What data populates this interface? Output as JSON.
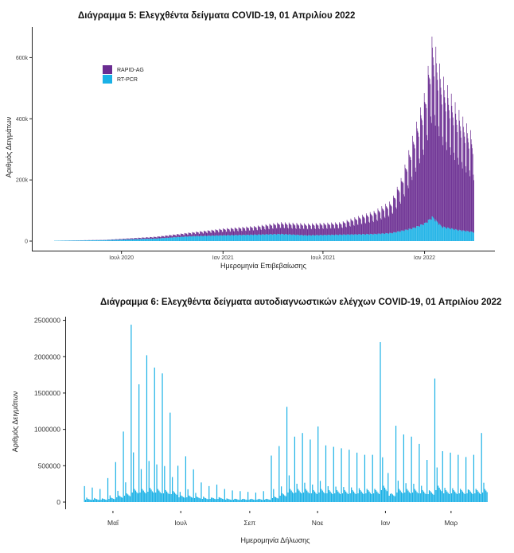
{
  "chart_data": [
    {
      "type": "bar",
      "title": "Διάγραμμα 5: Ελεγχθέντα δείγματα COVID-19, 01 Απριλίου 2022",
      "xlabel": "Ημερομηνία Επιβεβαίωσης",
      "ylabel": "Αριθμός Δειγμάτων",
      "ylim": [
        0,
        700000
      ],
      "y_ticks": [
        0,
        200000,
        400000,
        600000
      ],
      "y_tick_labels": [
        "0",
        "200k",
        "400k",
        "600k"
      ],
      "x_ticks": [
        "2020-07-01",
        "2021-01-01",
        "2021-07-01",
        "2022-01-01"
      ],
      "x_tick_labels": [
        "Ιουλ 2020",
        "Ιαν 2021",
        "Ιουλ 2021",
        "Ιαν 2022"
      ],
      "xlim": [
        "2020-03-01",
        "2022-04-01"
      ],
      "stacked": true,
      "legend_position": "top-left",
      "series": [
        {
          "name": "RAPID-AG",
          "color": "#6a2c91",
          "x": [
            "2020-03-01",
            "2020-06-01",
            "2020-09-01",
            "2020-11-01",
            "2021-01-01",
            "2021-03-01",
            "2021-04-15",
            "2021-06-01",
            "2021-08-01",
            "2021-10-01",
            "2021-11-01",
            "2021-11-20",
            "2021-12-10",
            "2022-01-01",
            "2022-01-15",
            "2022-02-01",
            "2022-03-01",
            "2022-04-01"
          ],
          "values": [
            0,
            1000,
            6000,
            12000,
            22000,
            28000,
            38000,
            38000,
            40000,
            75000,
            105000,
            175000,
            300000,
            430000,
            600000,
            500000,
            400000,
            310000
          ]
        },
        {
          "name": "RT-PCR",
          "color": "#1ab1e6",
          "x": [
            "2020-03-01",
            "2020-06-01",
            "2020-09-01",
            "2020-11-01",
            "2021-01-01",
            "2021-03-01",
            "2021-04-15",
            "2021-06-01",
            "2021-08-01",
            "2021-10-01",
            "2021-11-01",
            "2021-11-20",
            "2021-12-10",
            "2022-01-01",
            "2022-01-15",
            "2022-02-01",
            "2022-03-01",
            "2022-04-01"
          ],
          "values": [
            1000,
            3000,
            8000,
            15000,
            18000,
            20000,
            22000,
            18000,
            20000,
            22000,
            25000,
            32000,
            40000,
            55000,
            75000,
            45000,
            35000,
            28000
          ]
        }
      ]
    },
    {
      "type": "bar",
      "title": "Διάγραμμα 6: Ελεγχθέντα δείγματα αυτοδιαγνωστικών ελέγχων COVID-19, 01 Απριλίου 2022",
      "xlabel": "Ημερομηνία Δήλωσης",
      "ylabel": "Αριθμός Δειγμάτων",
      "ylim": [
        0,
        2550000
      ],
      "y_ticks": [
        0,
        500000,
        1000000,
        1500000,
        2000000,
        2500000
      ],
      "y_tick_labels": [
        "0",
        "500000",
        "1000000",
        "1500000",
        "2000000",
        "2500000"
      ],
      "x_ticks": [
        "2021-05-01",
        "2021-07-01",
        "2021-09-01",
        "2021-11-01",
        "2022-01-01",
        "2022-03-01"
      ],
      "x_tick_labels": [
        "Μαΐ",
        "Ιουλ",
        "Σεπ",
        "Νοε",
        "Ιαν",
        "Μαρ"
      ],
      "xlim": [
        "2021-04-01",
        "2022-04-03"
      ],
      "legend_position": "none",
      "series": [
        {
          "color": "#1ab1e6",
          "weekly_peak_dates": [
            "2021-04-05",
            "2021-04-12",
            "2021-04-19",
            "2021-04-26",
            "2021-05-03",
            "2021-05-10",
            "2021-05-17",
            "2021-05-24",
            "2021-05-31",
            "2021-06-07",
            "2021-06-14",
            "2021-06-21",
            "2021-06-28",
            "2021-07-05",
            "2021-07-12",
            "2021-07-19",
            "2021-07-26",
            "2021-08-02",
            "2021-08-09",
            "2021-08-16",
            "2021-08-23",
            "2021-08-30",
            "2021-09-06",
            "2021-09-13",
            "2021-09-20",
            "2021-09-27",
            "2021-10-04",
            "2021-10-11",
            "2021-10-18",
            "2021-10-25",
            "2021-11-01",
            "2021-11-08",
            "2021-11-15",
            "2021-11-22",
            "2021-11-29",
            "2021-12-06",
            "2021-12-13",
            "2021-12-20",
            "2021-12-27",
            "2022-01-03",
            "2022-01-10",
            "2022-01-17",
            "2022-01-24",
            "2022-01-31",
            "2022-02-07",
            "2022-02-14",
            "2022-02-21",
            "2022-02-28",
            "2022-03-07",
            "2022-03-14",
            "2022-03-21",
            "2022-03-28"
          ],
          "weekly_peak_values": [
            220000,
            200000,
            180000,
            330000,
            550000,
            970000,
            2440000,
            1620000,
            2020000,
            1850000,
            1770000,
            1230000,
            500000,
            630000,
            450000,
            270000,
            220000,
            240000,
            180000,
            160000,
            150000,
            140000,
            130000,
            150000,
            640000,
            770000,
            1310000,
            900000,
            950000,
            860000,
            1040000,
            780000,
            760000,
            740000,
            720000,
            680000,
            650000,
            650000,
            2200000,
            400000,
            1050000,
            930000,
            900000,
            800000,
            580000,
            1700000,
            700000,
            680000,
            650000,
            620000,
            650000,
            950000
          ],
          "baseline_values": [
            30000,
            30000,
            30000,
            40000,
            60000,
            80000,
            120000,
            120000,
            130000,
            120000,
            110000,
            100000,
            60000,
            60000,
            50000,
            40000,
            40000,
            40000,
            30000,
            30000,
            30000,
            30000,
            30000,
            30000,
            50000,
            80000,
            120000,
            120000,
            120000,
            110000,
            120000,
            110000,
            110000,
            110000,
            110000,
            110000,
            110000,
            110000,
            150000,
            80000,
            120000,
            120000,
            120000,
            110000,
            100000,
            150000,
            110000,
            110000,
            110000,
            110000,
            110000,
            120000
          ]
        }
      ]
    }
  ]
}
